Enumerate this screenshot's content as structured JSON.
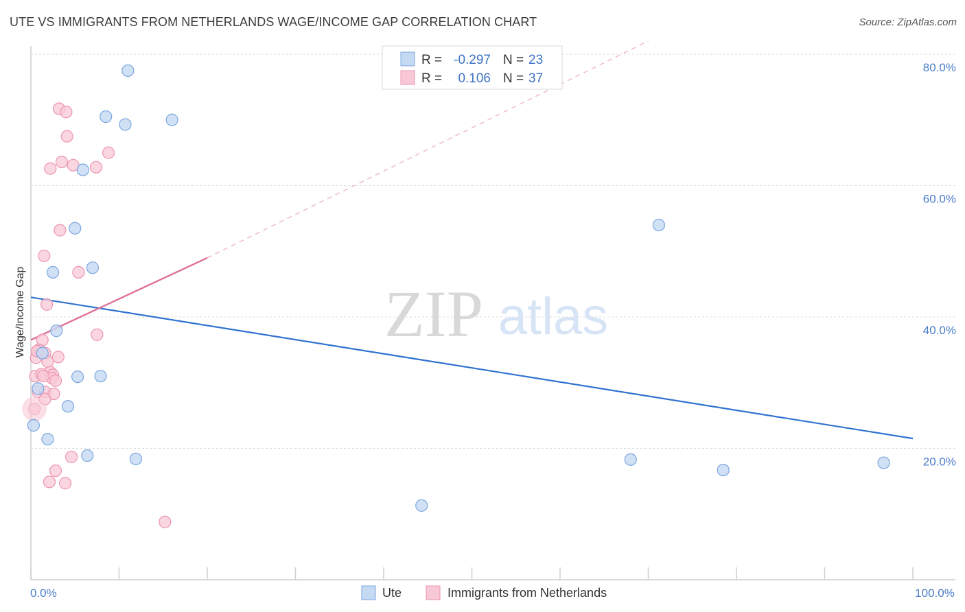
{
  "title": "UTE VS IMMIGRANTS FROM NETHERLANDS WAGE/INCOME GAP CORRELATION CHART",
  "source": "Source: ZipAtlas.com",
  "watermark": {
    "zip": "ZIP",
    "atlas": "atlas"
  },
  "colors": {
    "ute_fill": "#c5d9f3",
    "ute_stroke": "#7aa6e0",
    "ute_line": "#2f72d0",
    "neth_fill": "#f8c8d6",
    "neth_stroke": "#ec95b0",
    "neth_line": "#e0709a",
    "grid": "#dcdcdc",
    "accent_text": "#3f73c4"
  },
  "legend": {
    "rows": [
      {
        "r_label": "R = ",
        "r_value": "-0.297",
        "n_label": "N = ",
        "n_value": "23"
      },
      {
        "r_label": "R = ",
        "r_value": "0.106",
        "n_label": "N = ",
        "n_value": "37"
      }
    ]
  },
  "bottom_legend": [
    "Ute",
    "Immigrants from Netherlands"
  ],
  "chart_data": {
    "type": "scatter",
    "title": "UTE VS IMMIGRANTS FROM NETHERLANDS WAGE/INCOME GAP CORRELATION CHART",
    "xlabel": "",
    "ylabel": "Wage/Income Gap",
    "xlim": [
      0,
      100
    ],
    "ylim": [
      0,
      82
    ],
    "x_tick_labels": [
      {
        "value": 0,
        "label": "0.0%"
      },
      {
        "value": 100,
        "label": "100.0%"
      }
    ],
    "y_ticks": [
      20,
      40,
      60,
      80
    ],
    "y_tick_labels": [
      "20.0%",
      "40.0%",
      "60.0%",
      "80.0%"
    ],
    "grid": true,
    "series": [
      {
        "name": "Ute",
        "points": [
          {
            "x": 11,
            "y": 77.5
          },
          {
            "x": 8.5,
            "y": 70.5
          },
          {
            "x": 10.7,
            "y": 69.3
          },
          {
            "x": 16,
            "y": 70
          },
          {
            "x": 5.9,
            "y": 62.4
          },
          {
            "x": 5,
            "y": 53.5
          },
          {
            "x": 2.5,
            "y": 46.8
          },
          {
            "x": 7,
            "y": 47.5
          },
          {
            "x": 2.9,
            "y": 37.9
          },
          {
            "x": 1.3,
            "y": 34.5
          },
          {
            "x": 5.3,
            "y": 30.9
          },
          {
            "x": 7.9,
            "y": 31
          },
          {
            "x": 0.8,
            "y": 29.1
          },
          {
            "x": 4.2,
            "y": 26.4
          },
          {
            "x": 0.3,
            "y": 23.5
          },
          {
            "x": 1.9,
            "y": 21.4
          },
          {
            "x": 6.4,
            "y": 18.9
          },
          {
            "x": 11.9,
            "y": 18.4
          },
          {
            "x": 71.2,
            "y": 54
          },
          {
            "x": 68,
            "y": 18.3
          },
          {
            "x": 78.5,
            "y": 16.7
          },
          {
            "x": 96.7,
            "y": 17.8
          },
          {
            "x": 44.3,
            "y": 11.3
          }
        ],
        "trend": {
          "x0": 0,
          "y0": 43,
          "x1": 100,
          "y1": 21.5,
          "style": "solid"
        }
      },
      {
        "name": "Immigrants from Netherlands",
        "points": [
          {
            "x": 3.2,
            "y": 71.7
          },
          {
            "x": 4,
            "y": 71.2
          },
          {
            "x": 4.1,
            "y": 67.5
          },
          {
            "x": 3.5,
            "y": 63.6
          },
          {
            "x": 2.2,
            "y": 62.6
          },
          {
            "x": 4.8,
            "y": 63.1
          },
          {
            "x": 7.4,
            "y": 62.8
          },
          {
            "x": 8.8,
            "y": 65
          },
          {
            "x": 3.3,
            "y": 53.2
          },
          {
            "x": 1.5,
            "y": 49.3
          },
          {
            "x": 5.4,
            "y": 46.8
          },
          {
            "x": 1.8,
            "y": 41.9
          },
          {
            "x": 7.5,
            "y": 37.3
          },
          {
            "x": 1.3,
            "y": 36.5
          },
          {
            "x": 0.9,
            "y": 35
          },
          {
            "x": 1.6,
            "y": 34.5
          },
          {
            "x": 0.6,
            "y": 33.8
          },
          {
            "x": 3.1,
            "y": 33.9
          },
          {
            "x": 1.9,
            "y": 33.2
          },
          {
            "x": 0.5,
            "y": 31
          },
          {
            "x": 1.2,
            "y": 31.3
          },
          {
            "x": 2.2,
            "y": 31.6
          },
          {
            "x": 2.5,
            "y": 31.2
          },
          {
            "x": 2.4,
            "y": 30.7
          },
          {
            "x": 2.8,
            "y": 30.3
          },
          {
            "x": 0.8,
            "y": 28.6
          },
          {
            "x": 1.6,
            "y": 28.6
          },
          {
            "x": 2.6,
            "y": 28.3
          },
          {
            "x": 1.6,
            "y": 27.5
          },
          {
            "x": 0.4,
            "y": 26
          },
          {
            "x": 4.6,
            "y": 18.7
          },
          {
            "x": 2.8,
            "y": 16.6
          },
          {
            "x": 2.1,
            "y": 14.9
          },
          {
            "x": 3.9,
            "y": 14.7
          },
          {
            "x": 15.2,
            "y": 8.8
          },
          {
            "x": 0.7,
            "y": 34.8
          },
          {
            "x": 1.4,
            "y": 31.0
          }
        ],
        "trend_solid": {
          "x0": 0,
          "y0": 36.5,
          "x1": 20,
          "y1": 49
        },
        "trend_dashed": {
          "x0": 20,
          "y0": 49,
          "x1": 70,
          "y1": 82
        }
      }
    ]
  }
}
